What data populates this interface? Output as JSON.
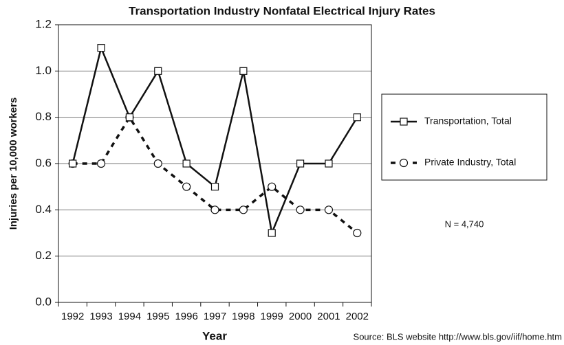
{
  "chart_data": {
    "type": "line",
    "title": "Transportation Industry Nonfatal Electrical Injury Rates",
    "x_label": "Year",
    "y_label": "Injuries per 10,000 workers",
    "categories": [
      "1992",
      "1993",
      "1994",
      "1995",
      "1996",
      "1997",
      "1998",
      "1999",
      "2000",
      "2001",
      "2002"
    ],
    "series": [
      {
        "name": "Transportation, Total",
        "color": "#111111",
        "line_style": "solid",
        "marker": "square",
        "values": [
          0.6,
          1.1,
          0.8,
          1.0,
          0.6,
          0.5,
          1.0,
          0.3,
          0.6,
          0.6,
          0.8
        ]
      },
      {
        "name": "Private Industry, Total",
        "color": "#111111",
        "line_style": "dashed",
        "marker": "circle",
        "values": [
          0.6,
          0.6,
          0.8,
          0.6,
          0.5,
          0.4,
          0.4,
          0.5,
          0.4,
          0.4,
          0.3
        ]
      }
    ],
    "ylim": [
      0,
      1.2
    ],
    "yticks": [
      {
        "value": 0,
        "label": "0.0"
      },
      0.2,
      0.4,
      0.6,
      0.8,
      {
        "value": 1,
        "label": "1.0"
      },
      1.2
    ],
    "grid": true,
    "legend": "right",
    "annotations": [
      "N = 4,740",
      "Source: BLS website http://www.bls.gov/iif/home.htm"
    ]
  }
}
